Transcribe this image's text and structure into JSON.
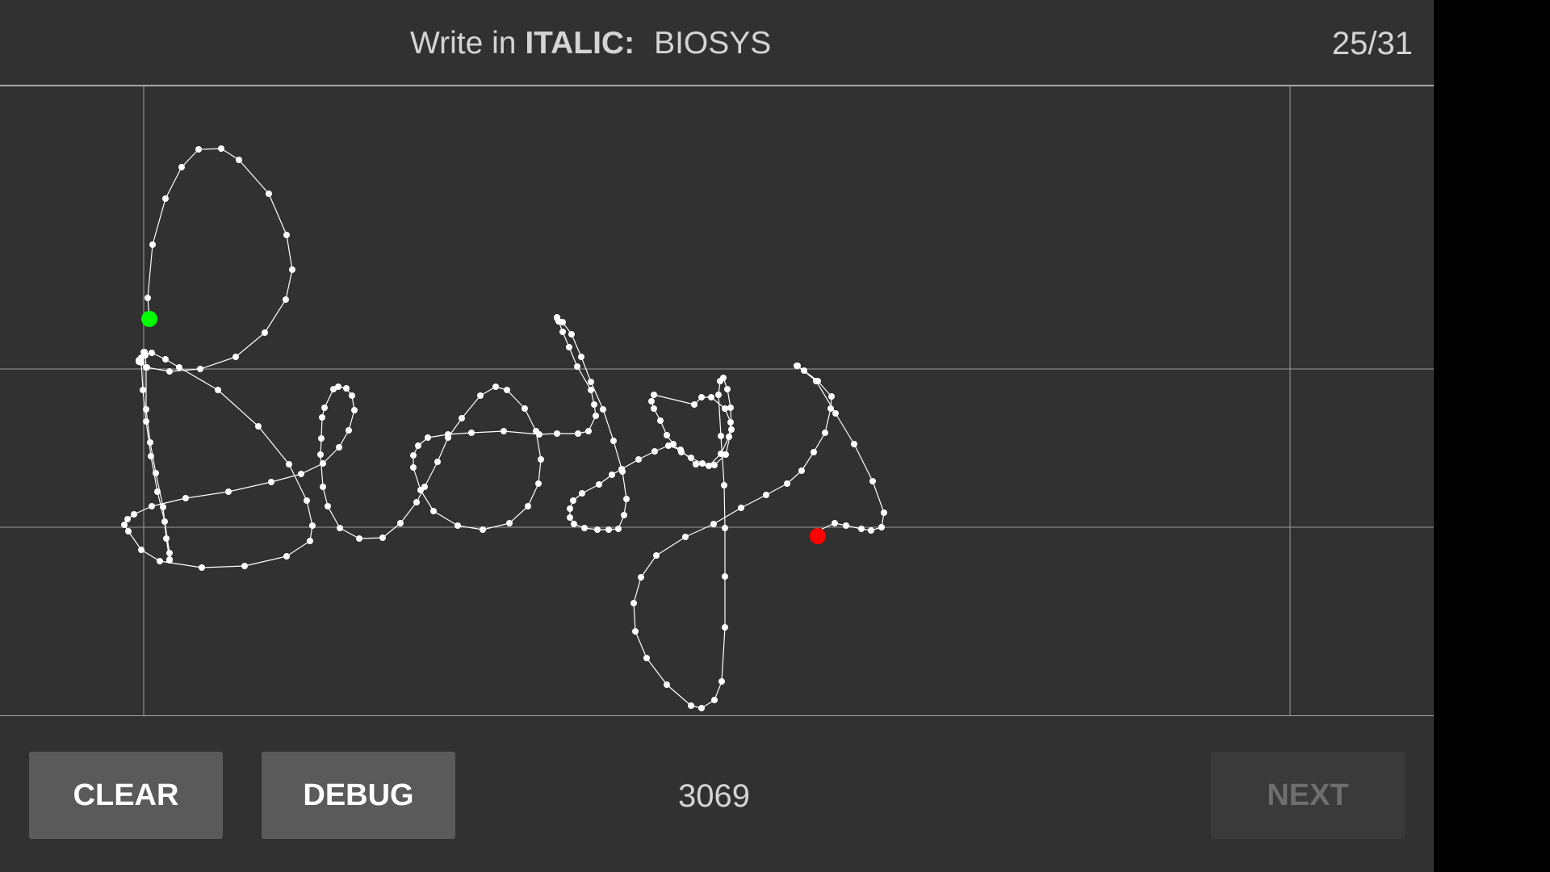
{
  "header": {
    "prompt_prefix": "Write in",
    "style_word": "ITALIC:",
    "target_word": "BIOSYS",
    "counter": "25/31"
  },
  "canvas": {
    "stroke_color": "#ffffff",
    "guide_line_color": "#9a9a9a",
    "start_marker_color": "#00ff00",
    "end_marker_color": "#ff0000"
  },
  "footer": {
    "clear_label": "CLEAR",
    "debug_label": "DEBUG",
    "point_count": "3069",
    "next_label": "NEXT",
    "next_enabled": false
  }
}
